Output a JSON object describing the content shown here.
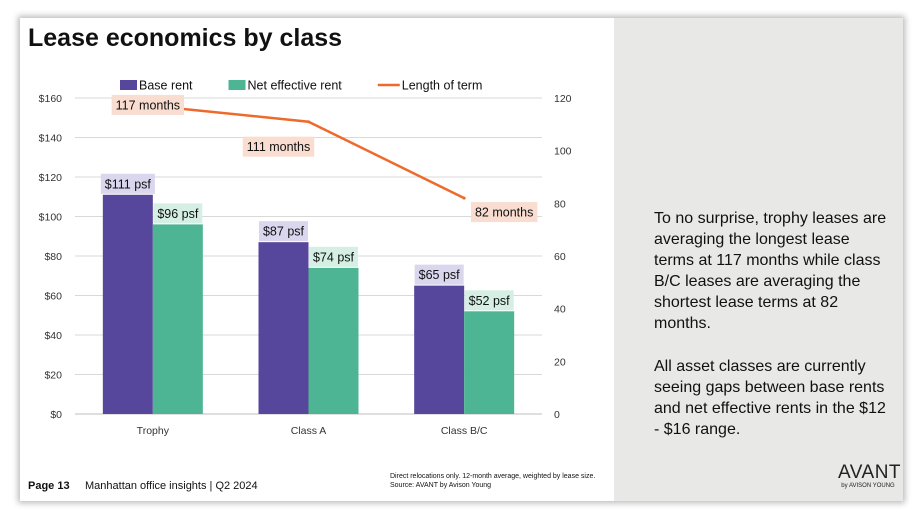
{
  "title": "Lease economics by class",
  "chart_data": {
    "type": "bar",
    "categories": [
      "Trophy",
      "Class A",
      "Class B/C"
    ],
    "series": [
      {
        "name": "Base rent",
        "type": "bar",
        "axis": "left",
        "color": "#57479c",
        "values": [
          111,
          87,
          65
        ],
        "labels": [
          "$111 psf",
          "$87 psf",
          "$65 psf"
        ]
      },
      {
        "name": "Net effective rent",
        "type": "bar",
        "axis": "left",
        "color": "#4db594",
        "values": [
          96,
          74,
          52
        ],
        "labels": [
          "$96 psf",
          "$74 psf",
          "$52 psf"
        ]
      },
      {
        "name": "Length of term",
        "type": "line",
        "axis": "right",
        "color": "#ee6a2c",
        "values": [
          117,
          111,
          82
        ],
        "labels": [
          "117 months",
          "111 months",
          "82 months"
        ]
      }
    ],
    "y_left": {
      "min": 0,
      "max": 160,
      "ticks": [
        "$0",
        "$20",
        "$40",
        "$60",
        "$80",
        "$100",
        "$120",
        "$140",
        "$160"
      ]
    },
    "y_right": {
      "min": 0,
      "max": 120,
      "ticks": [
        "0",
        "20",
        "40",
        "60",
        "80",
        "100",
        "120"
      ]
    },
    "grid": true,
    "legend_position": "top"
  },
  "description": {
    "paragraph1": "To no surprise, trophy leases are averaging the longest lease terms at 117 months while class B/C leases are averaging the shortest lease terms at 82 months.",
    "paragraph2": "All asset classes are currently seeing gaps between base rents and net effective rents in the $12 - $16 range."
  },
  "footer": {
    "page": "Page 13",
    "subtitle": "Manhattan office insights | Q2 2024",
    "note_line1": "Direct relocations only. 12-month average, weighted by lease size.",
    "note_line2": "Source: AVANT by Avison Young"
  },
  "brand": {
    "name": "AVANT",
    "sub": "by AVISON YOUNG"
  }
}
